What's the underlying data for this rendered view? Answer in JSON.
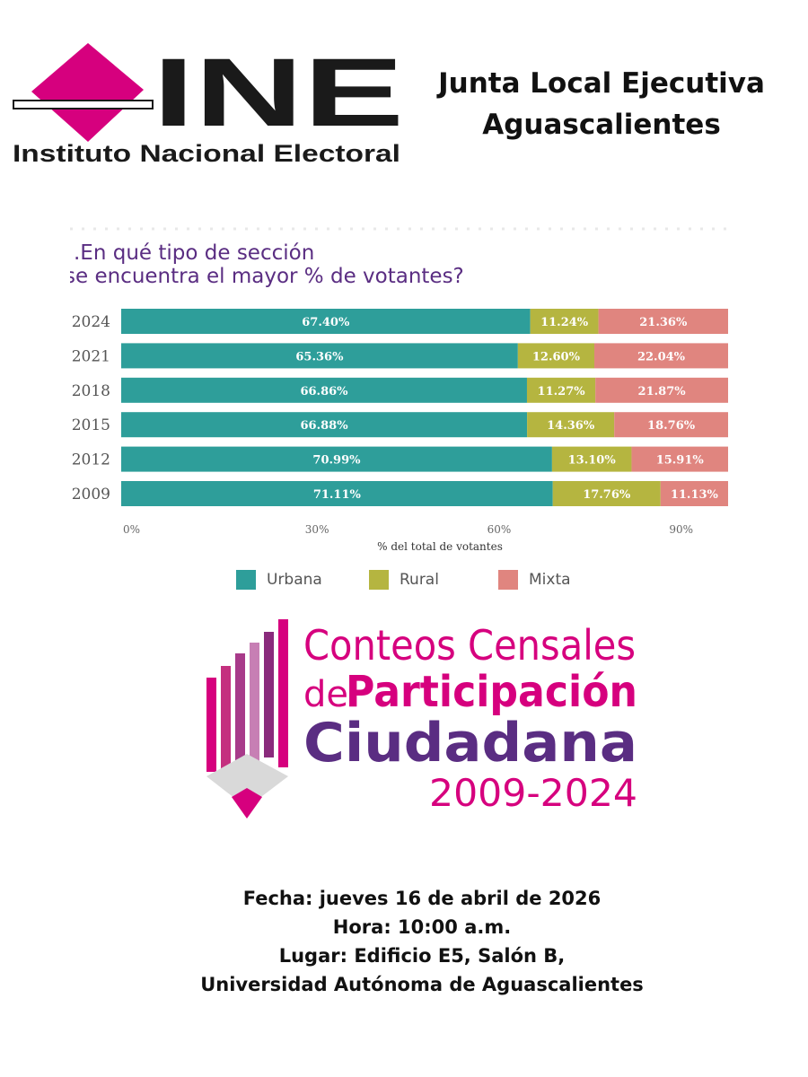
{
  "header": {
    "logo_letters": "INE",
    "logo_subtitle": "Instituto Nacional Electoral",
    "title_line1": "Junta Local Ejecutiva",
    "title_line2": "Aguascalientes"
  },
  "chart_data": {
    "type": "bar",
    "orientation": "horizontal",
    "stacked": true,
    "title_line1": ".En qué tipo de sección",
    "title_line2": "se encuentra el mayor % de votantes?",
    "categories": [
      "2024",
      "2021",
      "2018",
      "2015",
      "2012",
      "2009"
    ],
    "series": [
      {
        "name": "Urbana",
        "color": "#2e9e9a",
        "values": [
          67.4,
          65.36,
          66.86,
          66.88,
          70.99,
          71.11
        ],
        "labels": [
          "67.40%",
          "65.36%",
          "66.86%",
          "66.88%",
          "70.99%",
          "71.11%"
        ]
      },
      {
        "name": "Rural",
        "color": "#b5b540",
        "values": [
          11.24,
          12.6,
          11.27,
          14.36,
          13.1,
          17.76
        ],
        "labels": [
          "11.24%",
          "12.60%",
          "11.27%",
          "14.36%",
          "13.10%",
          "17.76%"
        ]
      },
      {
        "name": "Mixta",
        "color": "#e0857f",
        "values": [
          21.36,
          22.04,
          21.87,
          18.76,
          15.91,
          11.13
        ],
        "labels": [
          "21.36%",
          "22.04%",
          "21.87%",
          "18.76%",
          "15.91%",
          "11.13%"
        ]
      }
    ],
    "xlabel": "% del total de votantes",
    "xticks": [
      0,
      30,
      60,
      90
    ],
    "xtick_labels": [
      "0%",
      "30%",
      "60%",
      "90%"
    ],
    "xlim": [
      0,
      100
    ],
    "legend_position": "bottom"
  },
  "conteos": {
    "line1": "Conteos Censales",
    "line2_prefix": "de",
    "line2_main": "Participación",
    "line3": "Ciudadana",
    "years": "2009-2024"
  },
  "event": {
    "fecha": "Fecha: jueves 16 de abril de 2026",
    "hora": "Hora: 10:00 a.m.",
    "lugar": "Lugar: Edificio E5, Salón B,",
    "universidad": "Universidad Autónoma de Aguascalientes"
  }
}
